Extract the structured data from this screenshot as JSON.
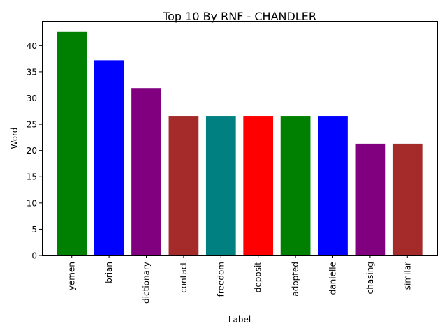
{
  "chart_data": {
    "type": "bar",
    "title": "Top 10 By RNF - CHANDLER",
    "xlabel": "Label",
    "ylabel": "Word",
    "categories": [
      "yemen",
      "brian",
      "dictionary",
      "contact",
      "freedom",
      "deposit",
      "adopted",
      "danielle",
      "chasing",
      "similar"
    ],
    "values": [
      42.6,
      37.2,
      31.9,
      26.6,
      26.6,
      26.6,
      26.6,
      26.6,
      21.3,
      21.3
    ],
    "colors": [
      "#008000",
      "#0000ff",
      "#800080",
      "#a52a2a",
      "#008080",
      "#ff0000",
      "#008000",
      "#0000ff",
      "#800080",
      "#a52a2a"
    ],
    "ylim": [
      0,
      44.7
    ],
    "yticks": [
      0,
      5,
      10,
      15,
      20,
      25,
      30,
      35,
      40
    ],
    "grid": false,
    "legend": "none"
  }
}
